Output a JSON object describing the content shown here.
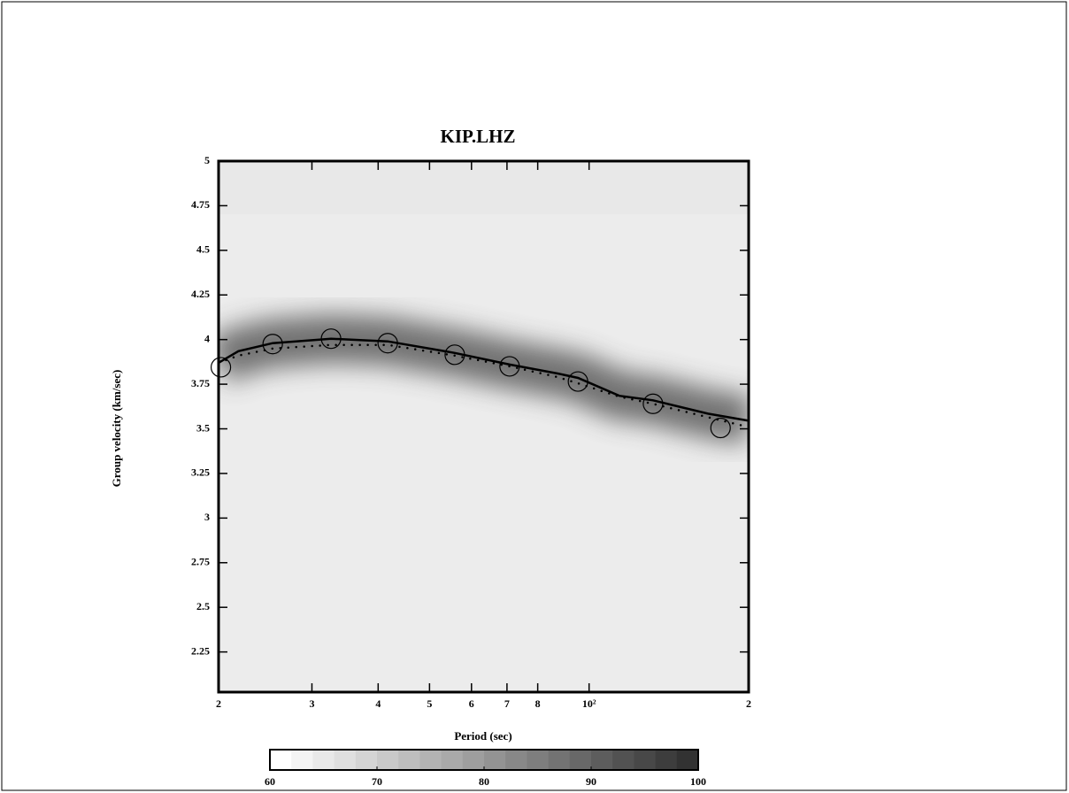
{
  "chart_data": {
    "type": "dispersion",
    "title": "KIP.LHZ",
    "x_label": "Period (sec)",
    "y_label": "Group velocity (km/sec)",
    "xscale": "log",
    "xlim": [
      20,
      200
    ],
    "ylim": [
      2.025,
      5
    ],
    "xticks": [
      {
        "value": 20,
        "label": "2"
      },
      {
        "value": 30,
        "label": "3"
      },
      {
        "value": 40,
        "label": "4"
      },
      {
        "value": 50,
        "label": "5"
      },
      {
        "value": 60,
        "label": "6"
      },
      {
        "value": 70,
        "label": "7"
      },
      {
        "value": 80,
        "label": "8"
      },
      {
        "value": 100,
        "label": "10²"
      },
      {
        "value": 200,
        "label": "2"
      }
    ],
    "yticks": [
      2.25,
      2.5,
      2.75,
      3,
      3.25,
      3.5,
      3.75,
      4,
      4.25,
      4.5,
      4.75,
      5
    ],
    "series": [
      {
        "style": "line",
        "color": "#000000",
        "x": [
          20,
          21.8,
          25.3,
          32.6,
          41.7,
          55.8,
          70.8,
          87.2,
          95.3,
          114,
          132,
          167.6,
          200
        ],
        "values": [
          3.87,
          3.935,
          3.98,
          4.005,
          3.99,
          3.925,
          3.86,
          3.81,
          3.785,
          3.685,
          3.66,
          3.585,
          3.545
        ]
      },
      {
        "style": "dotted",
        "color": "#000000",
        "x": [
          20,
          21.8,
          25.3,
          32.6,
          41.7,
          55.8,
          70.8,
          87.2,
          95.3,
          114,
          132,
          167.6,
          200
        ],
        "values": [
          3.87,
          3.91,
          3.95,
          3.97,
          3.97,
          3.91,
          3.85,
          3.79,
          3.755,
          3.68,
          3.64,
          3.565,
          3.51
        ]
      },
      {
        "style": "circles",
        "color": "#000000",
        "x": [
          20.2,
          25.3,
          32.6,
          41.7,
          55.8,
          70.8,
          95.3,
          132,
          177
        ],
        "values": [
          3.845,
          3.975,
          4.005,
          3.98,
          3.915,
          3.85,
          3.765,
          3.64,
          3.505
        ]
      }
    ],
    "colorbar": {
      "lim": [
        60,
        100
      ],
      "ticks": [
        60,
        70,
        80,
        90,
        100
      ]
    }
  }
}
